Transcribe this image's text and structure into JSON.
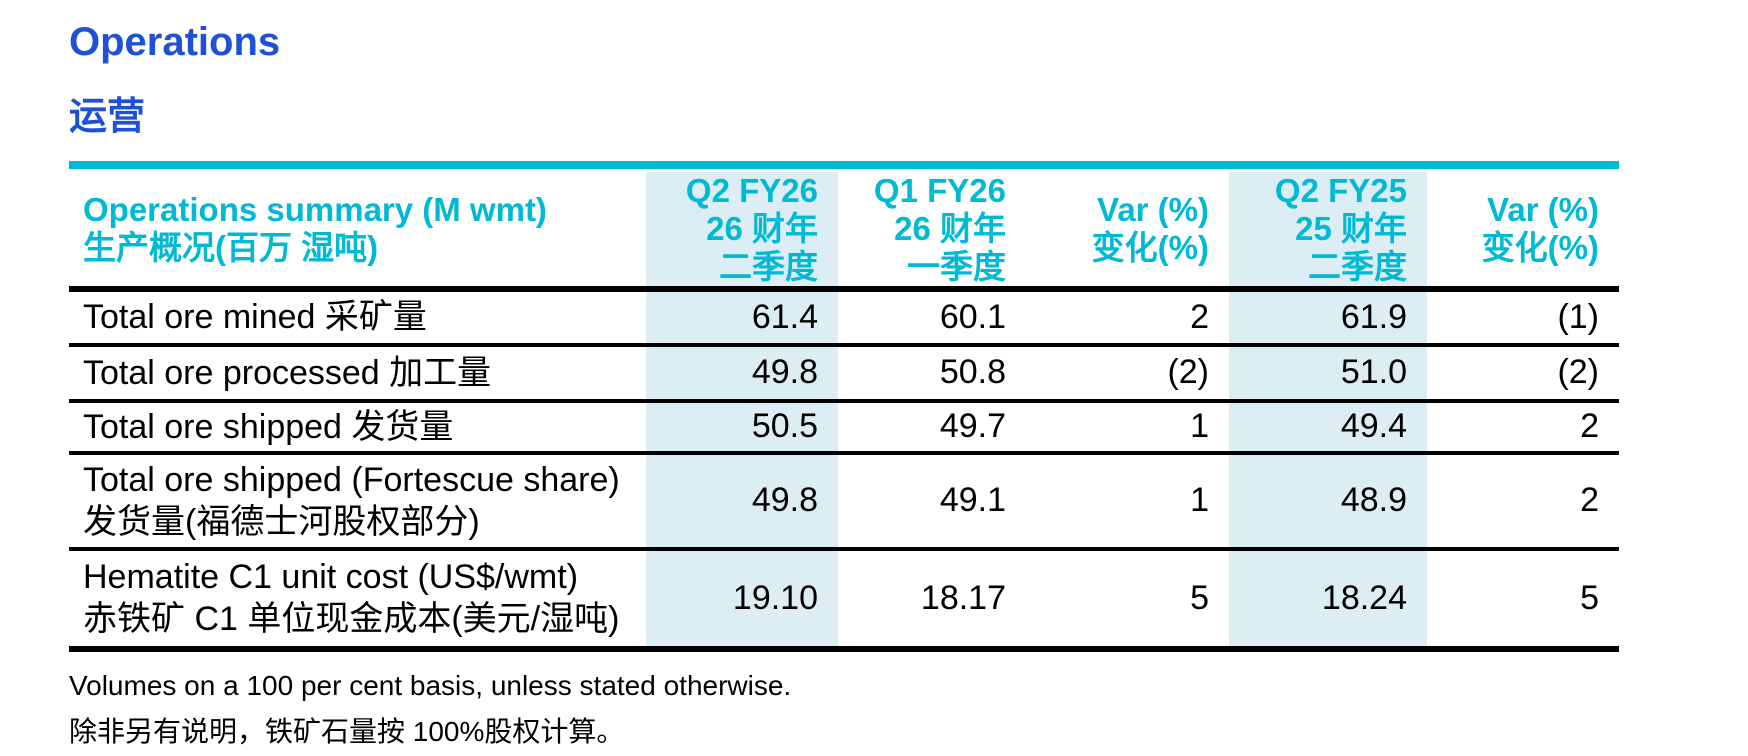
{
  "colors": {
    "title_blue": "#1e50d8",
    "accent_cyan": "#00b9d4",
    "highlight_bg": "#dcedf3",
    "text_black": "#000000"
  },
  "page": {
    "title_en": "Operations",
    "title_zh": "运营"
  },
  "table": {
    "header": {
      "label": {
        "en": "Operations summary (M wmt)",
        "zh": "生产概况(百万 湿吨)"
      },
      "columns": [
        {
          "en": "Q2 FY26",
          "zh1": "26 财年",
          "zh2": "二季度",
          "highlight": true
        },
        {
          "en": "Q1 FY26",
          "zh1": "26 财年",
          "zh2": "一季度",
          "highlight": false
        },
        {
          "en": "Var (%)",
          "zh1": "变化(%)",
          "highlight": false
        },
        {
          "en": "Q2 FY25",
          "zh1": "25 财年",
          "zh2": "二季度",
          "highlight": true
        },
        {
          "en": "Var (%)",
          "zh1": "变化(%)",
          "highlight": false
        }
      ]
    },
    "rows": [
      {
        "label_lines": [
          "Total ore mined 采矿量"
        ],
        "values": [
          "61.4",
          "60.1",
          "2",
          "61.9",
          "(1)"
        ]
      },
      {
        "label_lines": [
          "Total ore processed 加工量"
        ],
        "values": [
          "49.8",
          "50.8",
          "(2)",
          "51.0",
          "(2)"
        ]
      },
      {
        "label_lines": [
          "Total ore shipped 发货量"
        ],
        "values": [
          "50.5",
          "49.7",
          "1",
          "49.4",
          "2"
        ]
      },
      {
        "label_lines": [
          "Total ore shipped (Fortescue share)",
          "发货量(福德士河股权部分)"
        ],
        "values": [
          "49.8",
          "49.1",
          "1",
          "48.9",
          "2"
        ]
      },
      {
        "label_lines": [
          "Hematite C1 unit cost (US$/wmt)",
          "赤铁矿 C1 单位现金成本(美元/湿吨)"
        ],
        "values": [
          "19.10",
          "18.17",
          "5",
          "18.24",
          "5"
        ]
      }
    ]
  },
  "footnotes": {
    "en": "Volumes on a 100 per cent basis, unless stated otherwise.",
    "zh": "除非另有说明，铁矿石量按 100%股权计算。"
  }
}
